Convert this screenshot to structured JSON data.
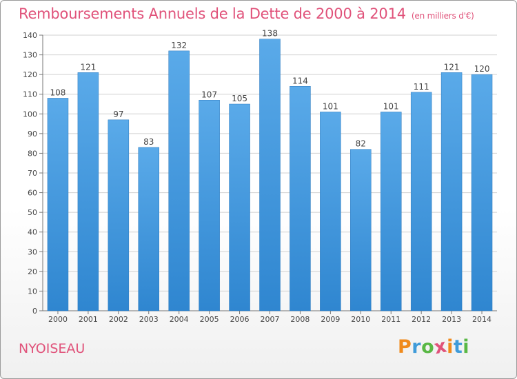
{
  "header": {
    "title": "Remboursements Annuels de la Dette de 2000 à 2014",
    "subtitle": "(en milliers d'€)"
  },
  "footer": {
    "commune": "NYOISEAU",
    "logo_text": "Proxiti",
    "logo_colors": [
      "#f08a1c",
      "#3f9bd9",
      "#59b845",
      "#e0527a",
      "#f08a1c",
      "#3f9bd9",
      "#59b845"
    ]
  },
  "colors": {
    "bar": "#3d95dd",
    "bar_light": "#5aaae9",
    "title": "#e0527a",
    "grid": "#d0d0d0"
  },
  "chart_data": {
    "type": "bar",
    "categories": [
      "2000",
      "2001",
      "2002",
      "2003",
      "2004",
      "2005",
      "2006",
      "2007",
      "2008",
      "2009",
      "2010",
      "2011",
      "2012",
      "2013",
      "2014"
    ],
    "values": [
      108,
      121,
      97,
      83,
      132,
      107,
      105,
      138,
      114,
      101,
      82,
      101,
      111,
      121,
      120
    ],
    "ylim": [
      0,
      140
    ],
    "yticks": [
      0,
      10,
      20,
      30,
      40,
      50,
      60,
      70,
      80,
      90,
      100,
      110,
      120,
      130,
      140
    ],
    "title": "Remboursements Annuels de la Dette de 2000 à 2014",
    "xlabel": "",
    "ylabel": "",
    "grid": true,
    "data_labels": true
  }
}
